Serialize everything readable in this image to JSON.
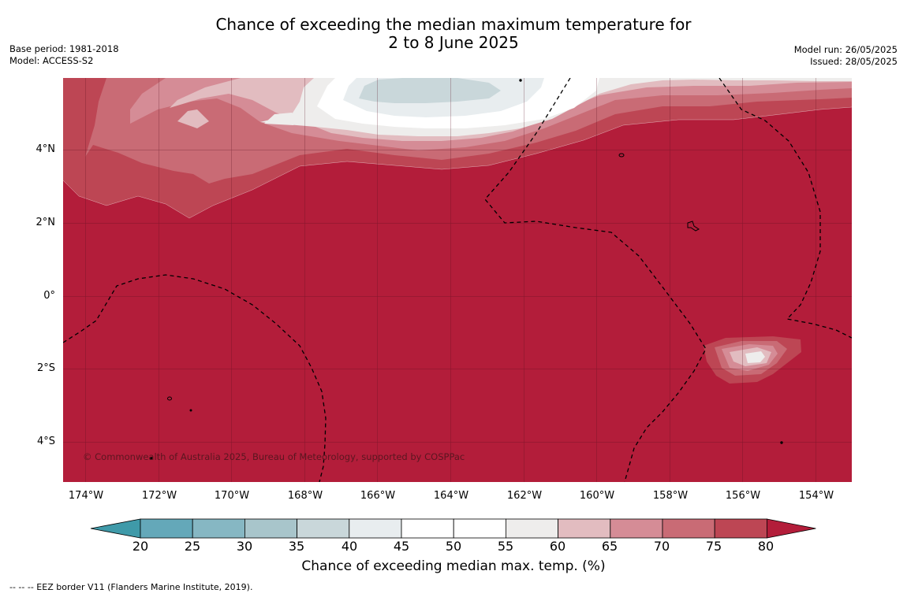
{
  "title": {
    "line1": "Chance of exceeding the median maximum temperature for",
    "line2": "2 to 8 June 2025"
  },
  "info_left": {
    "base_period": "Base period: 1981-2018",
    "model": "Model: ACCESS-S2"
  },
  "info_right": {
    "model_run": "Model run: 26/05/2025",
    "issued": "Issued: 28/05/2025"
  },
  "map": {
    "copyright": "© Commonwealth of Australia 2025, Bureau of Meteorology, supported by COSPPac",
    "lat_labels": [
      "4°N",
      "2°N",
      "0°",
      "2°S",
      "4°S"
    ],
    "lon_labels": [
      "174°W",
      "172°W",
      "170°W",
      "168°W",
      "166°W",
      "164°W",
      "162°W",
      "160°W",
      "158°W",
      "156°W",
      "154°W"
    ]
  },
  "colorbar": {
    "title": "Chance of exceeding median max. temp. (%)",
    "ticks": [
      "20",
      "25",
      "30",
      "35",
      "40",
      "45",
      "50",
      "55",
      "60",
      "65",
      "70",
      "75",
      "80"
    ],
    "colors": {
      "under": "#3f9aa9",
      "b20_25": "#64a8b9",
      "b25_30": "#86b7c3",
      "b30_35": "#a8c5cb",
      "b35_40": "#c9d7da",
      "b40_45": "#e8edef",
      "b45_50": "#ffffff",
      "b50_55": "#ffffff",
      "b55_60": "#eeedec",
      "b60_65": "#e2bcc0",
      "b65_70": "#d58c96",
      "b70_75": "#c96b75",
      "b75_80": "#bd4654",
      "over": "#b31d3a"
    }
  },
  "legend_note": "--  --  -- EEZ border V11 (Flanders Marine Institute, 2019)."
}
